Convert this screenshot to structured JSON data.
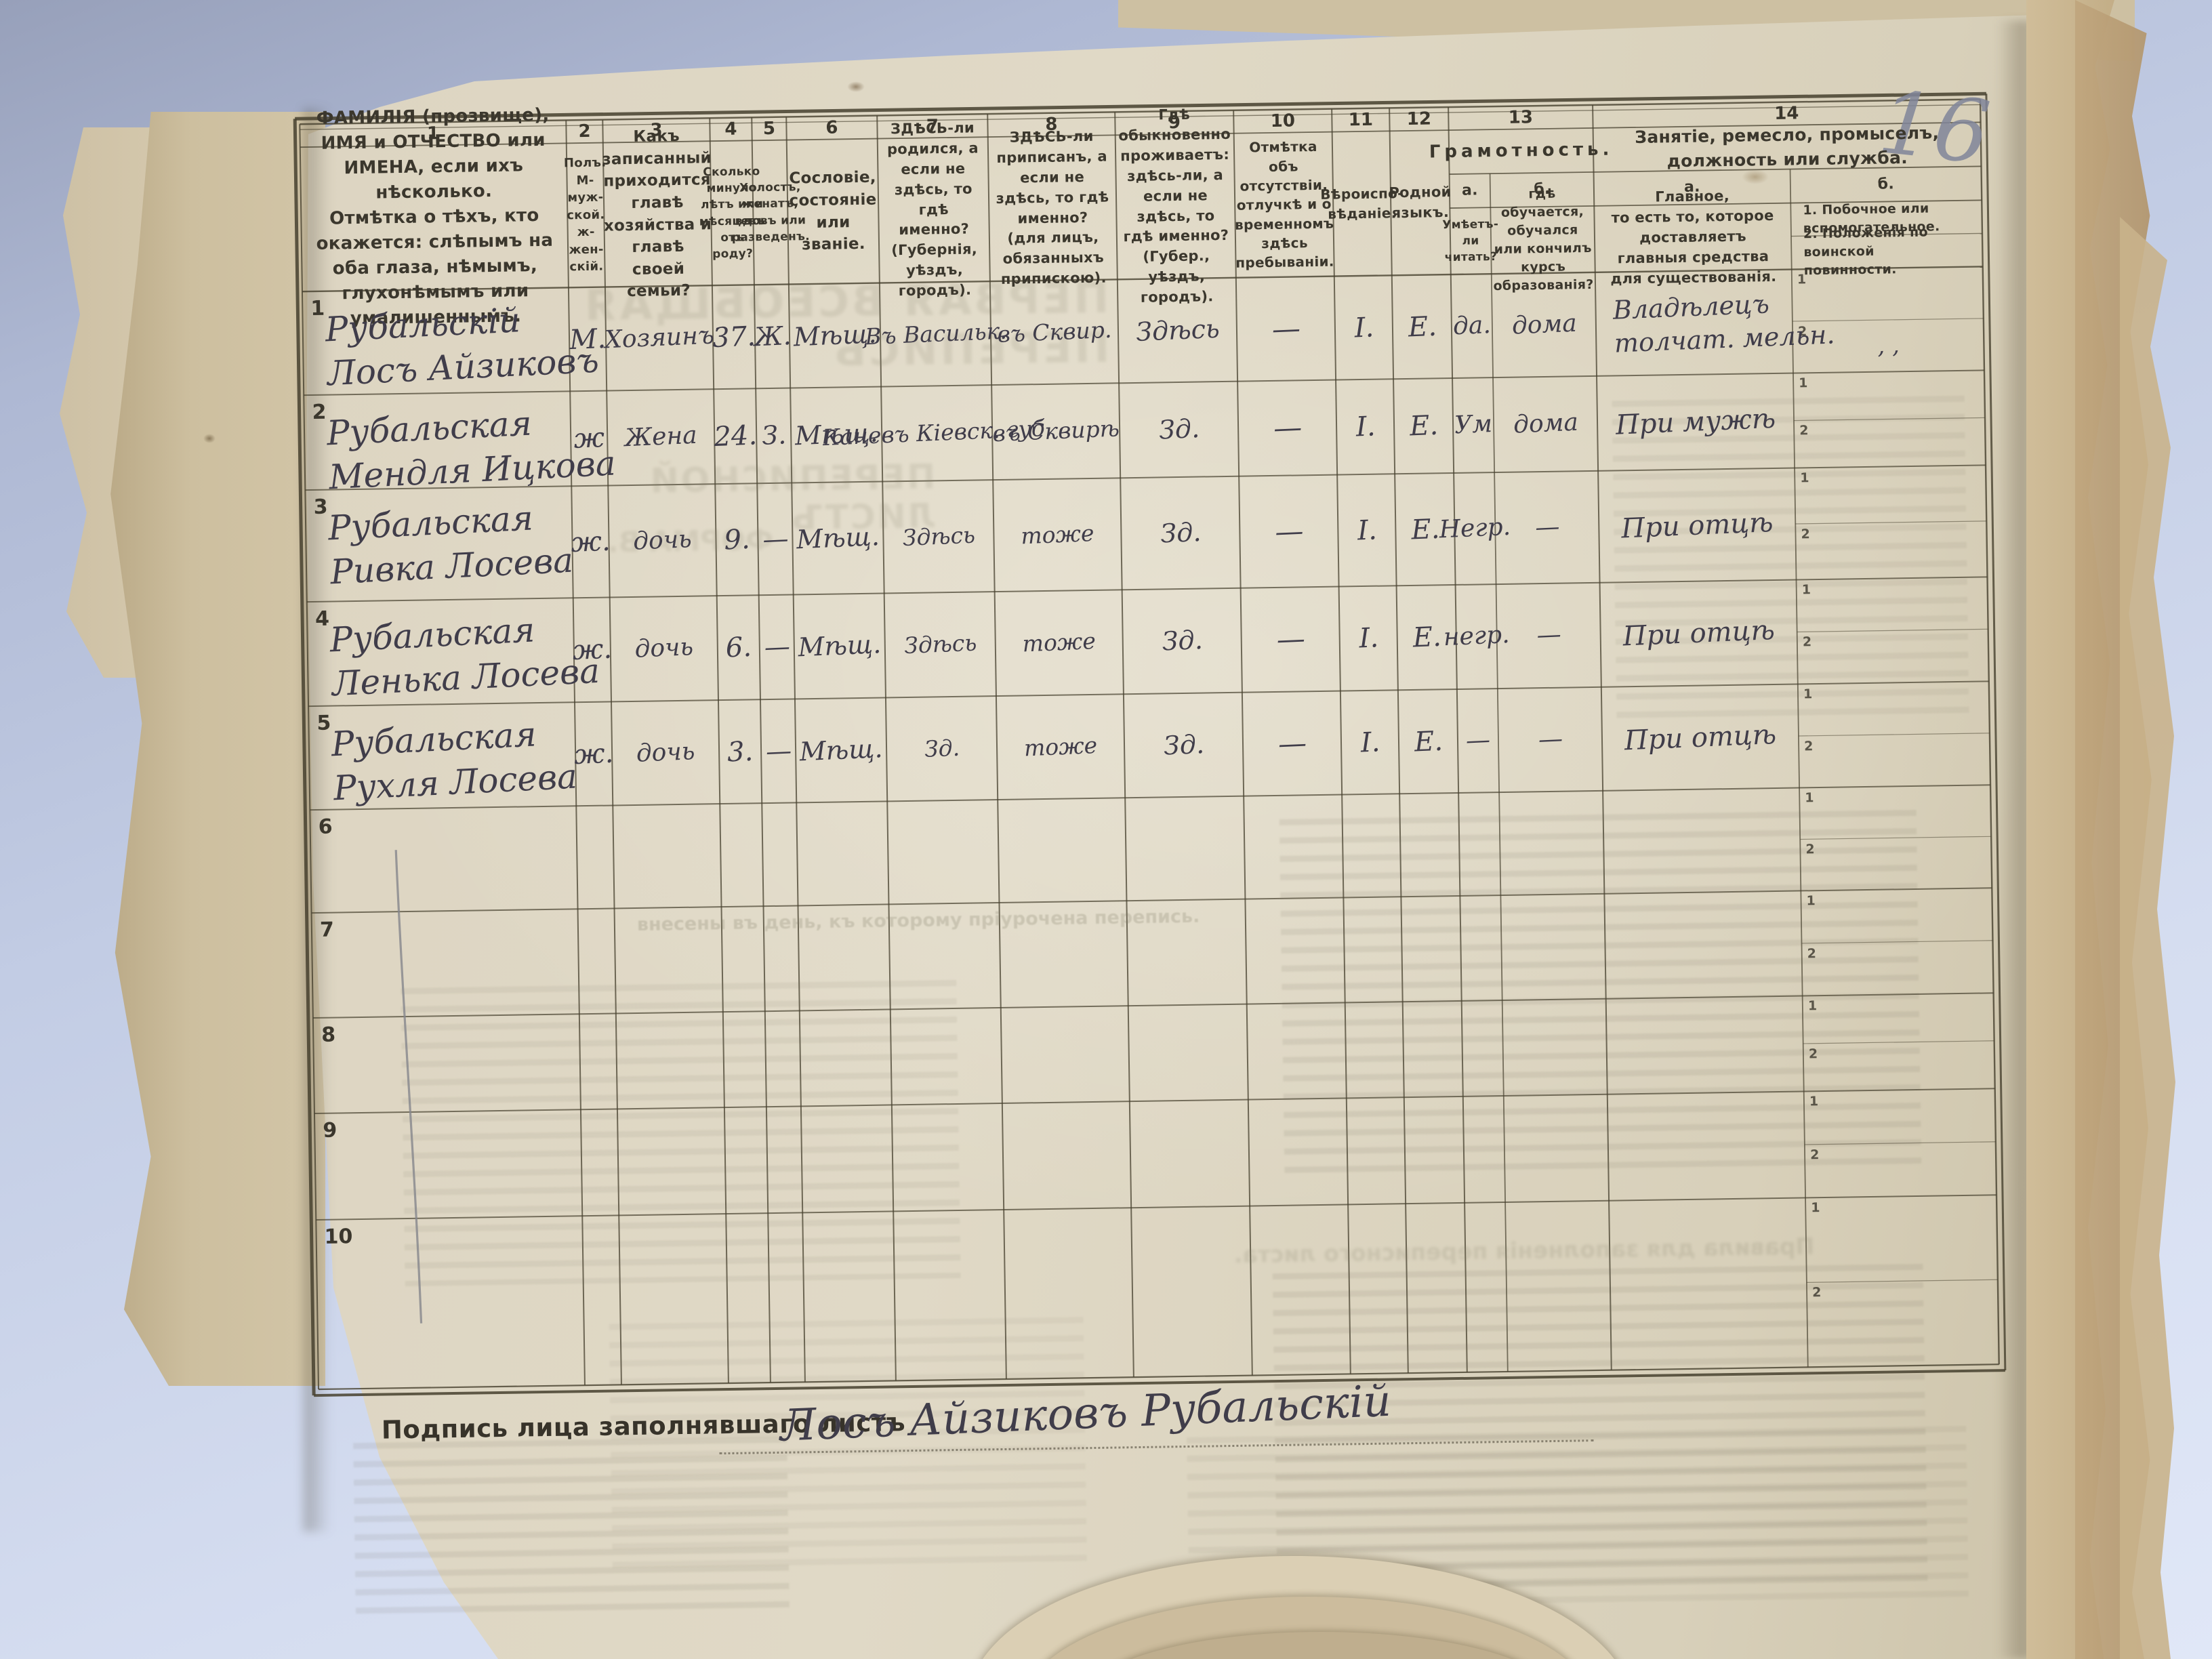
{
  "pencil_marks": {
    "page_number": "16"
  },
  "table": {
    "column_numbers": [
      "1",
      "2",
      "3",
      "4",
      "5",
      "6",
      "7",
      "8",
      "9",
      "10",
      "11",
      "12",
      "13",
      "14"
    ],
    "headers": {
      "c1": "ФАМИЛІЯ (прозвище), ИМЯ и ОТЧЕСТВО или ИМЕНА, если ихъ нѣсколько.\nОтмѣтка о тѣхъ, кто окажется: слѣпымъ на оба глаза, нѣмымъ, глухонѣмымъ или умалишеннымъ.",
      "c2": "Полъ.\nМ-муж-ской.\nж-жен-скій.",
      "c3": "Какъ записанный приходится главѣ хозяйства и главѣ своей семьи?",
      "c4": "Сколько минуло лѣтъ или мѣсяцевъ отъ роду?",
      "c5": "Холостъ, женатъ, вдовъ или разведенъ.",
      "c6": "Сословіе, состояніе или званіе.",
      "c7": "ЗДѢСЬ-ли родился, а если не здѣсь, то гдѣ именно?\n(Губернія, уѣздъ, городъ).",
      "c8": "ЗДѢСЬ-ли приписанъ, а если не здѣсь, то гдѣ именно?\n(для лицъ, обязанныхъ припискою).",
      "c9": "Гдѣ обыкновенно проживаетъ: здѣсь-ли, а если не здѣсь, то гдѣ именно?\n(Губер., уѣздъ, городъ).",
      "c10": "Отмѣтка объ отсутствіи, отлучкѣ и о временномъ здѣсь пребываніи.",
      "c11": "Вѣроиспо-вѣданіе.",
      "c12": "Родной языкъ.",
      "c13_title": "Грамотность.",
      "c13a_label": "а.",
      "c13b_label": "б.",
      "c13a": "Умѣетъ-ли читать?",
      "c13b": "гдѣ обучается, обучался или кончилъ курсъ образованія?",
      "c14_title": "Занятіе, ремесло, промыселъ, должность или служба.",
      "c14a_label": "а.",
      "c14b_label": "б.",
      "c14a": "Главное,\nто есть то, которое доставляетъ главныя средства для существованія.",
      "c14b_1": "1. Побочное или вспомогательное.",
      "c14b_2": "2. Положенія по воинской повинности.",
      "subrow_1": "1",
      "subrow_2": "2"
    },
    "rows": [
      {
        "num": "1",
        "name": "Рубальскій\nЛосъ Айзиковъ",
        "sex": "М.",
        "relation": "Хозяинъ",
        "age": "37.",
        "marital": "Ж.",
        "estate": "Мѣщ.",
        "birthplace": "Въ\nВасильк.",
        "registered": "въ\nСквир.",
        "residence": "Здѣсь",
        "absence": "—",
        "religion": "І.",
        "language": "Е.",
        "reads": "да.",
        "education": "дома",
        "occupation": "Владѣлецъ\nтолчат. мельн.",
        "side": "",
        "military": ", ,"
      },
      {
        "num": "2",
        "name": "Рубальская\nМендля Ицкова",
        "sex": "ж",
        "relation": "Жена",
        "age": "24.",
        "marital": "З.",
        "estate": "Мѣщ.",
        "birthplace": "Каневъ\nКіевск. губ.",
        "registered": "въ\nСквирѣ",
        "residence": "Зд.",
        "absence": "—",
        "religion": "І.",
        "language": "Е.",
        "reads": "Ум",
        "education": "дома",
        "occupation": "При мужѣ",
        "side": "",
        "military": ""
      },
      {
        "num": "3",
        "name": "Рубальская\nРивка Лосева",
        "sex": "ж.",
        "relation": "дочь",
        "age": "9.",
        "marital": "—",
        "estate": "Мѣщ.",
        "birthplace": "Здѣсь",
        "registered": "тоже",
        "residence": "Зд.",
        "absence": "—",
        "religion": "І.",
        "language": "Е.",
        "reads": "Негр.",
        "education": "—",
        "occupation": "При отцѣ",
        "side": "",
        "military": ""
      },
      {
        "num": "4",
        "name": "Рубальская\nЛенька Лосева",
        "sex": "ж.",
        "relation": "дочь",
        "age": "6.",
        "marital": "—",
        "estate": "Мѣщ.",
        "birthplace": "Здѣсь",
        "registered": "тоже",
        "residence": "Зд.",
        "absence": "—",
        "religion": "І.",
        "language": "Е.",
        "reads": "негр.",
        "education": "—",
        "occupation": "При отцѣ",
        "side": "",
        "military": ""
      },
      {
        "num": "5",
        "name": "Рубальская\nРухля Лосева",
        "sex": "ж.",
        "relation": "дочь",
        "age": "3.",
        "marital": "—",
        "estate": "Мѣщ.",
        "birthplace": "Зд.",
        "registered": "тоже",
        "residence": "Зд.",
        "absence": "—",
        "religion": "І.",
        "language": "Е.",
        "reads": "—",
        "education": "—",
        "occupation": "При отцѣ",
        "side": "",
        "military": ""
      },
      {
        "num": "6"
      },
      {
        "num": "7"
      },
      {
        "num": "8"
      },
      {
        "num": "9"
      },
      {
        "num": "10"
      }
    ]
  },
  "signature": {
    "label": "Подпись лица заполнявшаго листъ",
    "value": "Лосъ Айзиковъ Рубальскій"
  },
  "ghost_text": {
    "title": "ПЕРВАЯ ВСЕОБЩАЯ ПЕРЕПИСЬ",
    "subtitle": "ПЕРЕПИСНОЙ ЛИСТЪ",
    "form": "ФОРМА В.",
    "note": "внесены въ день, къ которому пріурочена перепись.",
    "rules": "Правила для заполненія переписного листа."
  }
}
